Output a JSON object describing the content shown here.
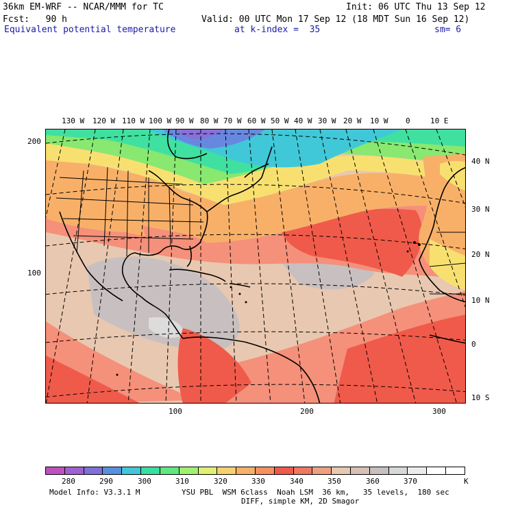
{
  "header": {
    "model": "36km EM-WRF -- NCAR/MMM for TC",
    "init": "Init: 06 UTC Thu 13 Sep 12",
    "fcst": "Fcst:   90 h",
    "valid": "Valid: 00 UTC Mon 17 Sep 12 (18 MDT Sun 16 Sep 12)",
    "field": "Equivalent potential temperature",
    "level": "at k-index =  35",
    "smooth": "sm= 6"
  },
  "map": {
    "top_lon_labels": [
      "130 W",
      "120 W",
      "110 W",
      "100 W",
      "90 W",
      "80 W",
      "70 W",
      "60 W",
      "50 W",
      "40 W",
      "30 W",
      "20 W",
      "10 W",
      "0",
      "10 E"
    ],
    "right_lat_labels": [
      "40 N",
      "30 N",
      "20 N",
      "10 N",
      "0",
      "10 S"
    ],
    "left_grid_labels": [
      "200",
      "100"
    ],
    "bottom_grid_labels": [
      "100",
      "200",
      "300"
    ],
    "colors": {
      "tropical_bg": "#e8c8b0",
      "warm_red": "#f05a4a",
      "salmon": "#f5907a",
      "orange": "#f8b068",
      "yellow": "#f8e070",
      "green": "#88e870",
      "teal": "#40e0a0",
      "cyan": "#40c8d8",
      "blue": "#6888e0",
      "purple": "#8870d8",
      "gray": "#c8c0c0",
      "light_gray": "#dcdcdc"
    }
  },
  "colorbar": {
    "colors": [
      "#c050c0",
      "#a060d0",
      "#8070d8",
      "#5890e0",
      "#40c8d8",
      "#38e0a0",
      "#60e880",
      "#a0f070",
      "#e0f070",
      "#f8d070",
      "#f8b068",
      "#f89060",
      "#f05a4a",
      "#f07860",
      "#f0a080",
      "#e8c8b0",
      "#d8c0b8",
      "#c8c0c0",
      "#d8d8d8",
      "#ececec",
      "#ffffff",
      "#ffffff"
    ],
    "labels": [
      "280",
      "290",
      "300",
      "310",
      "320",
      "330",
      "340",
      "350",
      "360",
      "370"
    ],
    "unit": "K"
  },
  "footer": {
    "model_info": "Model Info: V3.3.1 M",
    "physics": "YSU PBL  WSM 6class  Noah LSM  36 km,   35 levels,  180 sec",
    "diff": "DIFF, simple KM, 2D Smagor"
  }
}
